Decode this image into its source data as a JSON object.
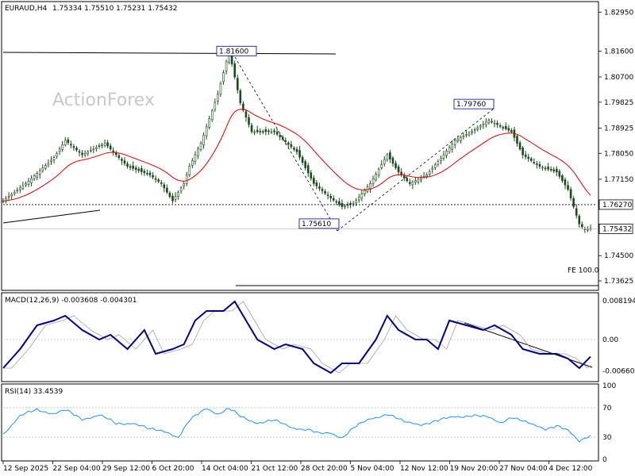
{
  "header": {
    "symbol": "EURAUD,H4",
    "ohlc": "1.75334 1.75510 1.75231 1.75432"
  },
  "watermark": "ActionForex",
  "chart_data": [
    {
      "type": "candlestick",
      "ylim": [
        1.7335,
        1.8326
      ],
      "y_ticks": [
        "1.82950",
        "1.81600",
        "1.80700",
        "1.79825",
        "1.78925",
        "1.78050",
        "1.77150",
        "1.76270",
        "1.75432",
        "1.74500",
        "1.73625"
      ],
      "x_ticks": [
        "12 Sep 2025",
        "22 Sep 04:00",
        "29 Sep 12:00",
        "6 Oct 20:00",
        "14 Oct 04:00",
        "21 Oct 12:00",
        "28 Oct 20:00",
        "5 Nov 04:00",
        "12 Nov 12:00",
        "19 Nov 20:00",
        "27 Nov 04:00",
        "4 Dec 12:00"
      ],
      "close_keypoints": [
        [
          0,
          1.764
        ],
        [
          8,
          1.77
        ],
        [
          18,
          1.779
        ],
        [
          22,
          1.785
        ],
        [
          28,
          1.78
        ],
        [
          36,
          1.784
        ],
        [
          44,
          1.776
        ],
        [
          52,
          1.773
        ],
        [
          56,
          1.77
        ],
        [
          60,
          1.764
        ],
        [
          64,
          1.77
        ],
        [
          66,
          1.776
        ],
        [
          70,
          1.784
        ],
        [
          76,
          1.801
        ],
        [
          80,
          1.816
        ],
        [
          84,
          1.798
        ],
        [
          88,
          1.788
        ],
        [
          96,
          1.788
        ],
        [
          104,
          1.781
        ],
        [
          110,
          1.77
        ],
        [
          116,
          1.765
        ],
        [
          120,
          1.762
        ],
        [
          124,
          1.763
        ],
        [
          130,
          1.77
        ],
        [
          136,
          1.78
        ],
        [
          140,
          1.774
        ],
        [
          144,
          1.77
        ],
        [
          150,
          1.773
        ],
        [
          156,
          1.78
        ],
        [
          160,
          1.785
        ],
        [
          166,
          1.788
        ],
        [
          172,
          1.792
        ],
        [
          176,
          1.79
        ],
        [
          180,
          1.788
        ],
        [
          184,
          1.78
        ],
        [
          190,
          1.776
        ],
        [
          196,
          1.774
        ],
        [
          200,
          1.768
        ],
        [
          204,
          1.756
        ],
        [
          206,
          1.754
        ],
        [
          208,
          1.7543
        ]
      ],
      "moving_average_color": "#dd0000",
      "annotations": [
        {
          "label": "1.81600",
          "value": 1.816
        },
        {
          "label": "1.79760",
          "value": 1.7976
        },
        {
          "label": "1.75610",
          "value": 1.7561
        },
        {
          "label": "FE 100.0",
          "value": 1.7383
        }
      ],
      "level_lines": [
        {
          "label": "1.76270",
          "value": 1.7627,
          "style": "dashed"
        },
        {
          "label": "1.75432",
          "value": 1.75432,
          "style": "solid",
          "color": "#c0c0c0"
        }
      ]
    },
    {
      "type": "line",
      "title": "MACD(12,26,9) -0.003608 -0.004301",
      "ylim": [
        -0.0085,
        0.0095
      ],
      "y_ticks": [
        "0.008194",
        "0.00",
        "-0.006604"
      ],
      "series": [
        {
          "name": "MACD",
          "color": "#000080",
          "keypoints": [
            [
              0,
              -0.006
            ],
            [
              6,
              -0.002
            ],
            [
              12,
              0.003
            ],
            [
              18,
              0.004
            ],
            [
              22,
              0.005
            ],
            [
              28,
              0.002
            ],
            [
              34,
              0.0
            ],
            [
              38,
              0.001
            ],
            [
              44,
              -0.002
            ],
            [
              50,
              0.002
            ],
            [
              54,
              -0.003
            ],
            [
              60,
              -0.002
            ],
            [
              64,
              -0.001
            ],
            [
              68,
              0.004
            ],
            [
              72,
              0.006
            ],
            [
              78,
              0.006
            ],
            [
              82,
              0.008
            ],
            [
              86,
              0.004
            ],
            [
              90,
              0.0
            ],
            [
              96,
              -0.002
            ],
            [
              100,
              -0.001
            ],
            [
              106,
              -0.002
            ],
            [
              110,
              -0.005
            ],
            [
              116,
              -0.007
            ],
            [
              120,
              -0.005
            ],
            [
              126,
              -0.005
            ],
            [
              132,
              0.0
            ],
            [
              136,
              0.005
            ],
            [
              140,
              0.002
            ],
            [
              146,
              0.0
            ],
            [
              150,
              0.0
            ],
            [
              154,
              -0.002
            ],
            [
              158,
              0.004
            ],
            [
              164,
              0.003
            ],
            [
              170,
              0.002
            ],
            [
              174,
              0.003
            ],
            [
              180,
              0.001
            ],
            [
              184,
              -0.002
            ],
            [
              190,
              -0.003
            ],
            [
              196,
              -0.003
            ],
            [
              200,
              -0.004
            ],
            [
              204,
              -0.006
            ],
            [
              208,
              -0.0036
            ]
          ]
        },
        {
          "name": "Signal",
          "color": "#a0a0a0",
          "lag": 3
        }
      ]
    },
    {
      "type": "line",
      "title": "RSI(14) 33.4539",
      "ylim": [
        0,
        100
      ],
      "y_ticks": [
        "100",
        "70",
        "30",
        "0"
      ],
      "series": [
        {
          "name": "RSI",
          "color": "#1e90ff",
          "keypoints": [
            [
              0,
              35
            ],
            [
              6,
              58
            ],
            [
              12,
              68
            ],
            [
              18,
              62
            ],
            [
              22,
              66
            ],
            [
              28,
              55
            ],
            [
              34,
              60
            ],
            [
              40,
              48
            ],
            [
              46,
              50
            ],
            [
              52,
              40
            ],
            [
              58,
              38
            ],
            [
              62,
              30
            ],
            [
              66,
              52
            ],
            [
              72,
              70
            ],
            [
              76,
              62
            ],
            [
              80,
              68
            ],
            [
              84,
              58
            ],
            [
              90,
              50
            ],
            [
              96,
              52
            ],
            [
              102,
              44
            ],
            [
              108,
              40
            ],
            [
              112,
              34
            ],
            [
              116,
              36
            ],
            [
              120,
              30
            ],
            [
              124,
              42
            ],
            [
              130,
              55
            ],
            [
              136,
              62
            ],
            [
              142,
              50
            ],
            [
              148,
              48
            ],
            [
              154,
              52
            ],
            [
              160,
              58
            ],
            [
              166,
              60
            ],
            [
              172,
              56
            ],
            [
              176,
              50
            ],
            [
              180,
              58
            ],
            [
              186,
              48
            ],
            [
              192,
              42
            ],
            [
              196,
              46
            ],
            [
              200,
              38
            ],
            [
              204,
              24
            ],
            [
              206,
              30
            ],
            [
              208,
              33
            ]
          ]
        }
      ]
    }
  ]
}
